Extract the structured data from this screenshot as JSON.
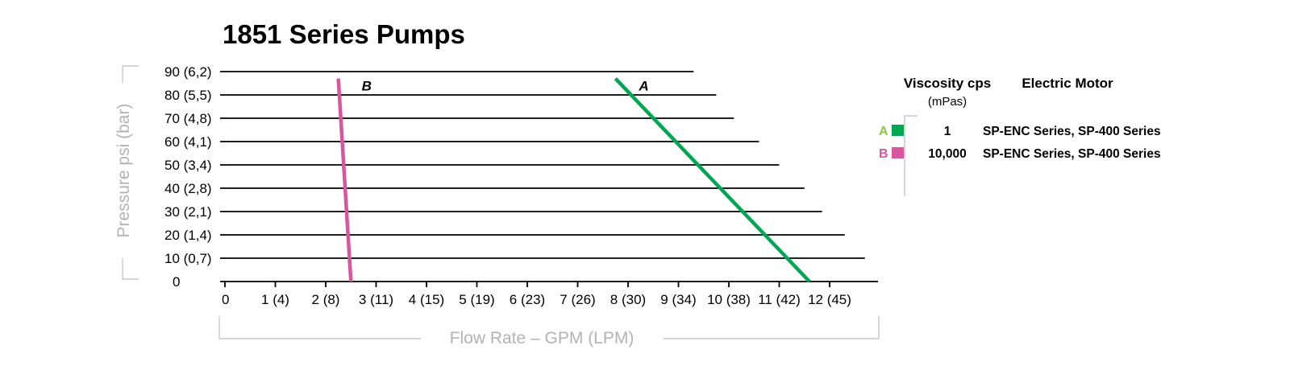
{
  "chart_data": {
    "type": "line",
    "title": "1851 Series Pumps",
    "xlabel": "Flow Rate – GPM (LPM)",
    "ylabel": "Pressure psi (bar)",
    "xlim": [
      0,
      12.3
    ],
    "ylim": [
      0,
      90
    ],
    "x_ticks": [
      {
        "value": 0,
        "label": "0"
      },
      {
        "value": 1,
        "label": "1 (4)"
      },
      {
        "value": 2,
        "label": "2 (8)"
      },
      {
        "value": 3,
        "label": "3 (11)"
      },
      {
        "value": 4,
        "label": "4 (15)"
      },
      {
        "value": 5,
        "label": "5 (19)"
      },
      {
        "value": 6,
        "label": "6 (23)"
      },
      {
        "value": 7,
        "label": "7 (26)"
      },
      {
        "value": 8,
        "label": "8 (30)"
      },
      {
        "value": 9,
        "label": "9 (34)"
      },
      {
        "value": 10,
        "label": "10 (38)"
      },
      {
        "value": 11,
        "label": "11 (42)"
      },
      {
        "value": 12,
        "label": "12 (45)"
      }
    ],
    "y_ticks": [
      {
        "value": 0,
        "label": "0"
      },
      {
        "value": 10,
        "label": "10  (0,7)"
      },
      {
        "value": 20,
        "label": "20  (1,4)"
      },
      {
        "value": 30,
        "label": "30  (2,1)"
      },
      {
        "value": 40,
        "label": "40  (2,8)"
      },
      {
        "value": 50,
        "label": "50  (3,4)"
      },
      {
        "value": 60,
        "label": "60  (4,1)"
      },
      {
        "value": 70,
        "label": "70  (4,8)"
      },
      {
        "value": 80,
        "label": "80  (5,5)"
      },
      {
        "value": 90,
        "label": "90  (6,2)"
      }
    ],
    "gridlines": [
      {
        "y": 90,
        "x_end": 9.3
      },
      {
        "y": 80,
        "x_end": 9.75
      },
      {
        "y": 70,
        "x_end": 10.1
      },
      {
        "y": 60,
        "x_end": 10.6
      },
      {
        "y": 50,
        "x_end": 11.0
      },
      {
        "y": 40,
        "x_end": 11.5
      },
      {
        "y": 30,
        "x_end": 11.85
      },
      {
        "y": 20,
        "x_end": 12.3
      },
      {
        "y": 10,
        "x_end": 12.7
      }
    ],
    "series": [
      {
        "name": "A",
        "color": "#00a651",
        "x": [
          7.75,
          11.6
        ],
        "y": [
          87,
          0
        ]
      },
      {
        "name": "B",
        "color": "#d9559e",
        "x": [
          2.25,
          2.5
        ],
        "y": [
          87,
          0
        ]
      }
    ],
    "grid": true,
    "legend_position": "right"
  },
  "legend": {
    "header_viscosity": "Viscosity cps",
    "header_viscosity_unit": "(mPas)",
    "header_motor": "Electric Motor",
    "rows": [
      {
        "key": "A",
        "color": "#00a651",
        "key_color": "#8dc63f",
        "viscosity": "1",
        "motor": "SP-ENC Series, SP-400 Series"
      },
      {
        "key": "B",
        "color": "#d9559e",
        "key_color": "#d9559e",
        "viscosity": "10,000",
        "motor": "SP-ENC Series, SP-400 Series"
      }
    ]
  }
}
